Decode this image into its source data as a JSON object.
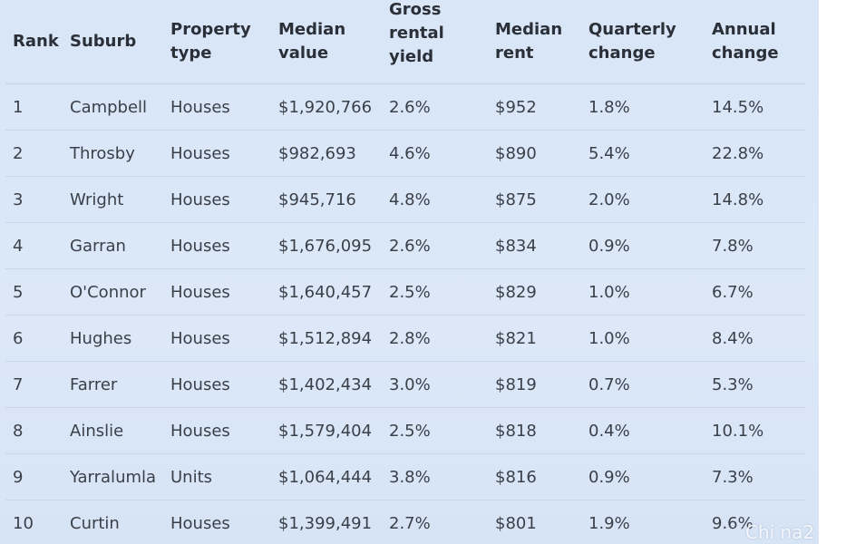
{
  "table": {
    "headers": [
      {
        "key": "rank",
        "label": "Rank"
      },
      {
        "key": "suburb",
        "label": "Suburb"
      },
      {
        "key": "property_type",
        "label": "Property\ntype"
      },
      {
        "key": "median_value",
        "label": "Median\nvalue"
      },
      {
        "key": "gross_rental_yield",
        "label": "Gross\nrental\nyield"
      },
      {
        "key": "median_rent",
        "label": "Median\nrent"
      },
      {
        "key": "quarterly_change",
        "label": "Quarterly\nchange"
      },
      {
        "key": "annual_change",
        "label": "Annual\nchange"
      }
    ],
    "rows": [
      [
        "1",
        "Campbell",
        "Houses",
        "$1,920,766",
        "2.6%",
        "$952",
        "1.8%",
        "14.5%"
      ],
      [
        "2",
        "Throsby",
        "Houses",
        "$982,693",
        "4.6%",
        "$890",
        "5.4%",
        "22.8%"
      ],
      [
        "3",
        "Wright",
        "Houses",
        "$945,716",
        "4.8%",
        "$875",
        "2.0%",
        "14.8%"
      ],
      [
        "4",
        "Garran",
        "Houses",
        "$1,676,095",
        "2.6%",
        "$834",
        "0.9%",
        "7.8%"
      ],
      [
        "5",
        "O'Connor",
        "Houses",
        "$1,640,457",
        "2.5%",
        "$829",
        "1.0%",
        "6.7%"
      ],
      [
        "6",
        "Hughes",
        "Houses",
        "$1,512,894",
        "2.8%",
        "$821",
        "1.0%",
        "8.4%"
      ],
      [
        "7",
        "Farrer",
        "Houses",
        "$1,402,434",
        "3.0%",
        "$819",
        "0.7%",
        "5.3%"
      ],
      [
        "8",
        "Ainslie",
        "Houses",
        "$1,579,404",
        "2.5%",
        "$818",
        "0.4%",
        "10.1%"
      ],
      [
        "9",
        "Yarralumla",
        "Units",
        "$1,064,444",
        "3.8%",
        "$816",
        "0.9%",
        "7.3%"
      ],
      [
        "10",
        "Curtin",
        "Houses",
        "$1,399,491",
        "2.7%",
        "$801",
        "1.9%",
        "9.6%"
      ]
    ]
  },
  "watermark": "Chi na2"
}
